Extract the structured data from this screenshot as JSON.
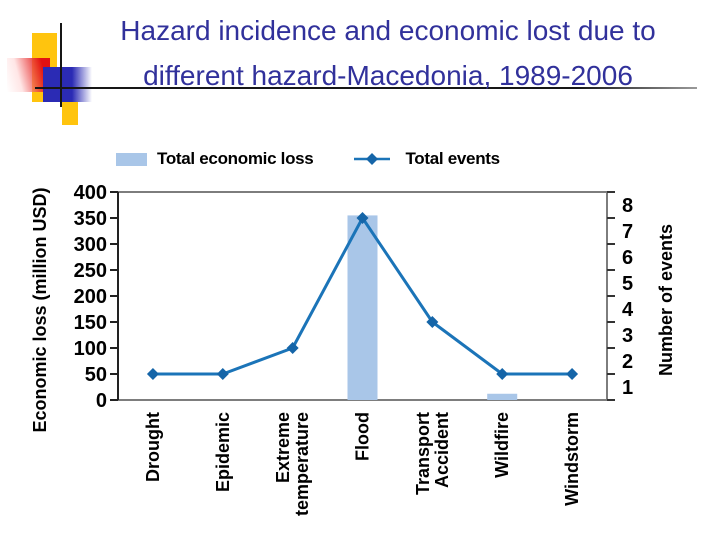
{
  "slide": {
    "title_line1": "Hazard incidence and economic lost due to",
    "title_line2": "different hazard-Macedonia, 1989-2006",
    "title_color": "#31319B",
    "background": "#FFFFFF"
  },
  "ornament": {
    "yellow": "#FFC40E",
    "red": "#E31010",
    "blue": "#2B2BB4",
    "line": "#161616"
  },
  "legend": {
    "economic_loss_label": "Total economic loss",
    "events_label": "Total events"
  },
  "chart_data": {
    "type": "bar+line",
    "categories": [
      "Drought",
      "Epidemic",
      "Extreme temperature",
      "Flood",
      "Transport Accident",
      "Wildfire",
      "Windstorm"
    ],
    "category_label_lines": [
      [
        "Drought"
      ],
      [
        "Epidemic"
      ],
      [
        "Extreme",
        "temperature"
      ],
      [
        "Flood"
      ],
      [
        "Transport",
        "Accident"
      ],
      [
        "Wildfire"
      ],
      [
        "Windstorm"
      ]
    ],
    "series": [
      {
        "name": "Total economic loss",
        "type": "bar",
        "axis": "left",
        "color": "#A9C6E8",
        "values": [
          0,
          0,
          0,
          355,
          0,
          12,
          0
        ]
      },
      {
        "name": "Total events",
        "type": "line",
        "axis": "right",
        "color": "#1B74B8",
        "marker": "diamond",
        "marker_color": "#1565A8",
        "values": [
          1,
          1,
          2,
          7,
          3,
          1,
          1
        ]
      }
    ],
    "left_axis": {
      "label": "Economic loss (million USD)",
      "min": 0,
      "max": 400,
      "ticks": [
        0,
        50,
        100,
        150,
        200,
        250,
        300,
        350,
        400
      ]
    },
    "right_axis": {
      "label": "Number of events",
      "min": 0,
      "max": 8,
      "ticks": [
        1,
        2,
        3,
        4,
        5,
        6,
        7,
        8
      ]
    },
    "legend_position": "top-left",
    "gridlines": false,
    "plot_background": "#FFFFFF"
  }
}
